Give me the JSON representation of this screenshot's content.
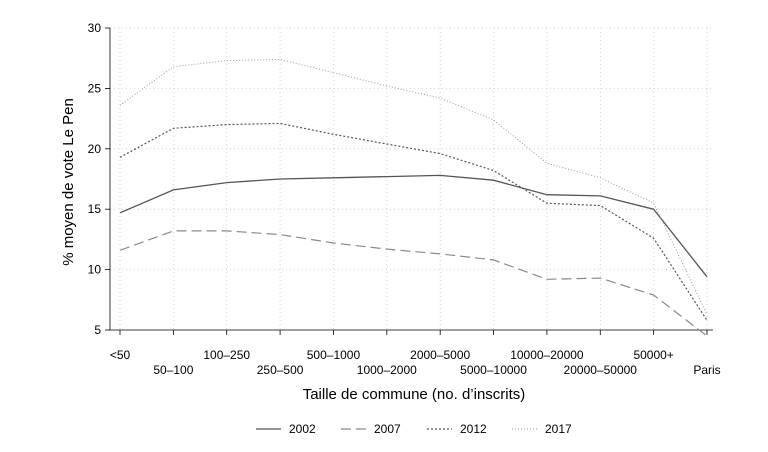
{
  "chart_data": {
    "type": "line",
    "xlabel": "Taille de commune (no. d’inscrits)",
    "ylabel": "% moyen de vote Le Pen",
    "categories": [
      "<50",
      "50–100",
      "100–250",
      "250–500",
      "500–1000",
      "1000–2000",
      "2000–5000",
      "5000–10000",
      "10000–20000",
      "20000–50000",
      "50000+",
      "Paris"
    ],
    "ylim": [
      5,
      30
    ],
    "yticks": [
      5,
      10,
      15,
      20,
      25,
      30
    ],
    "grid": "dotted vertical and horizontal",
    "legend_position": "bottom",
    "series": [
      {
        "name": "2002",
        "style": "solid",
        "color": "#555555",
        "values": [
          14.7,
          16.6,
          17.2,
          17.5,
          17.6,
          17.7,
          17.8,
          17.4,
          16.2,
          16.1,
          15.0,
          9.4
        ]
      },
      {
        "name": "2007",
        "style": "longdash",
        "color": "#8a8a8a",
        "values": [
          11.6,
          13.2,
          13.2,
          12.9,
          12.2,
          11.7,
          11.3,
          10.8,
          9.2,
          9.3,
          7.9,
          4.5
        ]
      },
      {
        "name": "2012",
        "style": "dotted",
        "color": "#555555",
        "values": [
          19.3,
          21.7,
          22.0,
          22.1,
          21.2,
          20.4,
          19.6,
          18.2,
          15.5,
          15.3,
          12.6,
          5.8
        ]
      },
      {
        "name": "2017",
        "style": "finedotted",
        "color": "#999999",
        "values": [
          23.6,
          26.8,
          27.3,
          27.4,
          26.3,
          25.2,
          24.2,
          22.4,
          18.8,
          17.6,
          15.5,
          6.3
        ]
      }
    ]
  }
}
